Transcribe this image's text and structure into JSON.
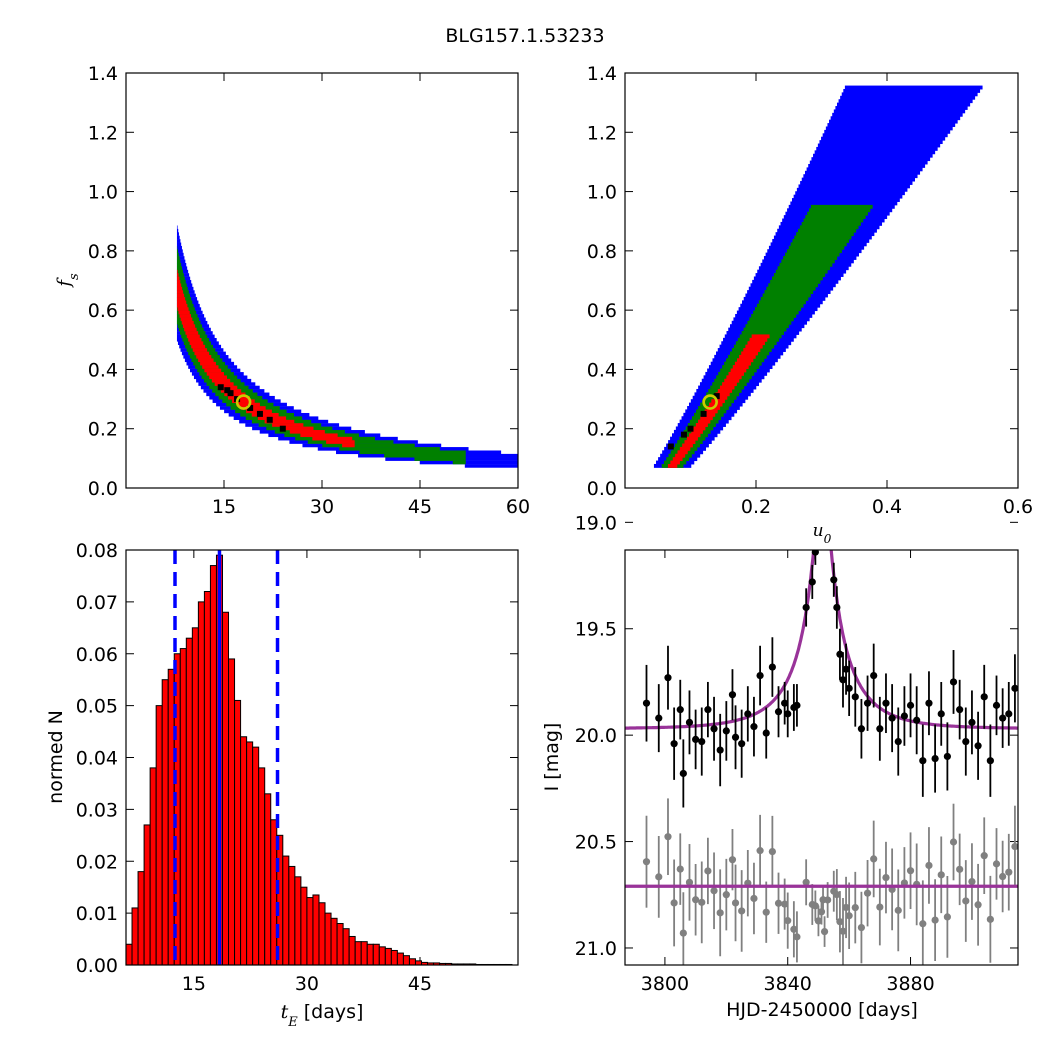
{
  "figure_title": "BLG157.1.53233",
  "colors": {
    "outer": "#0000ff",
    "middle": "#008000",
    "inner": "#ff0000",
    "core": "#000000",
    "marker": "#cccc00",
    "histogram_fill": "#ff0000",
    "median_line": "#0000ff",
    "model_line": "#993399",
    "data_primary": "#000000",
    "data_secondary": "#808080"
  },
  "chart_data": [
    {
      "id": "tE-fs",
      "type": "heatmap",
      "xlabel": "",
      "ylabel": "f_s",
      "xlim": [
        0,
        60
      ],
      "ylim": [
        0,
        1.4
      ],
      "xticks": [
        "15",
        "30",
        "45",
        "60"
      ],
      "yticks": [
        "0.0",
        "0.2",
        "0.4",
        "0.6",
        "0.8",
        "1.0",
        "1.2",
        "1.4"
      ],
      "levels": [
        "outer",
        "middle",
        "inner",
        "core"
      ],
      "best_fit": {
        "x": 18,
        "y": 0.29
      }
    },
    {
      "id": "u0-fs",
      "type": "heatmap",
      "xlabel": "u_0",
      "ylabel": "",
      "xlim": [
        0,
        0.6
      ],
      "ylim": [
        0,
        1.4
      ],
      "xticks": [
        "0.2",
        "0.4",
        "0.6"
      ],
      "yticks": [
        "0.0",
        "0.2",
        "0.4",
        "0.6",
        "0.8",
        "1.0",
        "1.2",
        "1.4"
      ],
      "levels": [
        "outer",
        "middle",
        "inner",
        "core"
      ],
      "best_fit": {
        "x": 0.13,
        "y": 0.29
      }
    },
    {
      "id": "tE-hist",
      "type": "bar",
      "xlabel": "[days]",
      "xlabel_symbol": "t_E",
      "ylabel": "normed N",
      "xlim": [
        6,
        58
      ],
      "ylim": [
        0,
        0.08
      ],
      "xticks": [
        "15",
        "30",
        "45"
      ],
      "yticks": [
        "0.00",
        "0.01",
        "0.02",
        "0.03",
        "0.04",
        "0.05",
        "0.06",
        "0.07",
        "0.08"
      ],
      "bin_width": 0.8,
      "bin_start": 6.0,
      "values": [
        0.004,
        0.011,
        0.018,
        0.027,
        0.038,
        0.05,
        0.055,
        0.057,
        0.06,
        0.061,
        0.063,
        0.065,
        0.07,
        0.072,
        0.077,
        0.079,
        0.068,
        0.059,
        0.051,
        0.044,
        0.043,
        0.042,
        0.038,
        0.033,
        0.028,
        0.025,
        0.021,
        0.019,
        0.017,
        0.015,
        0.013,
        0.0135,
        0.012,
        0.01,
        0.009,
        0.008,
        0.007,
        0.0055,
        0.0045,
        0.0045,
        0.004,
        0.004,
        0.0035,
        0.0032,
        0.0028,
        0.0023,
        0.0018,
        0.0012,
        0.0008,
        0.0005,
        0.0004,
        0.0004,
        0.0003,
        0.0003,
        0.0002,
        0.0002,
        0.0002,
        0.0002,
        0.0001,
        0.0001,
        0.0001,
        0.0001,
        0.0001,
        0.0001,
        0.0
      ],
      "median": 18.4,
      "interval": [
        12.5,
        26.1
      ]
    },
    {
      "id": "lightcurve",
      "type": "scatter",
      "xlabel": "HJD-2450000 [days]",
      "ylabel": "I [mag]",
      "xlim": [
        3787,
        3915
      ],
      "ylim": [
        21.08,
        19.13
      ],
      "y_inverted": true,
      "xticks": [
        "3800",
        "3840",
        "3880"
      ],
      "yticks": [
        "19.0",
        "19.5",
        "20.0",
        "20.5",
        "21.0"
      ],
      "model": {
        "t0": 3851.3,
        "tE": 18.4,
        "u0": 0.13,
        "fs": 0.29,
        "baseline": 19.97
      },
      "residual_baseline": 20.71,
      "observations": [
        {
          "t": 3794,
          "mag": 19.85,
          "err": 0.18
        },
        {
          "t": 3798,
          "mag": 19.92,
          "err": 0.16
        },
        {
          "t": 3801,
          "mag": 19.73,
          "err": 0.15
        },
        {
          "t": 3803,
          "mag": 20.04,
          "err": 0.17
        },
        {
          "t": 3805,
          "mag": 19.88,
          "err": 0.14
        },
        {
          "t": 3806,
          "mag": 20.18,
          "err": 0.16
        },
        {
          "t": 3808,
          "mag": 19.94,
          "err": 0.15
        },
        {
          "t": 3810,
          "mag": 20.02,
          "err": 0.14
        },
        {
          "t": 3812,
          "mag": 20.03,
          "err": 0.16
        },
        {
          "t": 3814,
          "mag": 19.88,
          "err": 0.13
        },
        {
          "t": 3816,
          "mag": 19.97,
          "err": 0.15
        },
        {
          "t": 3818,
          "mag": 20.07,
          "err": 0.17
        },
        {
          "t": 3820,
          "mag": 19.98,
          "err": 0.14
        },
        {
          "t": 3822,
          "mag": 19.81,
          "err": 0.12
        },
        {
          "t": 3823,
          "mag": 20.01,
          "err": 0.15
        },
        {
          "t": 3825,
          "mag": 20.04,
          "err": 0.16
        },
        {
          "t": 3827,
          "mag": 19.9,
          "err": 0.13
        },
        {
          "t": 3829,
          "mag": 19.96,
          "err": 0.14
        },
        {
          "t": 3831,
          "mag": 19.72,
          "err": 0.14
        },
        {
          "t": 3833,
          "mag": 19.99,
          "err": 0.12
        },
        {
          "t": 3835,
          "mag": 19.68,
          "err": 0.14
        },
        {
          "t": 3837,
          "mag": 19.89,
          "err": 0.12
        },
        {
          "t": 3839,
          "mag": 19.85,
          "err": 0.1
        },
        {
          "t": 3840,
          "mag": 19.9,
          "err": 0.11
        },
        {
          "t": 3842,
          "mag": 19.87,
          "err": 0.11
        },
        {
          "t": 3843,
          "mag": 19.86,
          "err": 0.1
        },
        {
          "t": 3846,
          "mag": 19.4,
          "err": 0.09
        },
        {
          "t": 3848,
          "mag": 19.28,
          "err": 0.08
        },
        {
          "t": 3849,
          "mag": 19.14,
          "err": 0.06
        },
        {
          "t": 3850,
          "mag": 19.06,
          "err": 0.06
        },
        {
          "t": 3851,
          "mag": 18.92,
          "err": 0.05
        },
        {
          "t": 3851.5,
          "mag": 18.86,
          "err": 0.05
        },
        {
          "t": 3852,
          "mag": 19.04,
          "err": 0.06
        },
        {
          "t": 3853,
          "mag": 19.02,
          "err": 0.07
        },
        {
          "t": 3855,
          "mag": 19.27,
          "err": 0.08
        },
        {
          "t": 3856,
          "mag": 19.4,
          "err": 0.1
        },
        {
          "t": 3857,
          "mag": 19.62,
          "err": 0.12
        },
        {
          "t": 3858,
          "mag": 19.74,
          "err": 0.13
        },
        {
          "t": 3859,
          "mag": 19.69,
          "err": 0.12
        },
        {
          "t": 3860,
          "mag": 19.78,
          "err": 0.13
        },
        {
          "t": 3862,
          "mag": 19.82,
          "err": 0.14
        },
        {
          "t": 3864,
          "mag": 19.97,
          "err": 0.14
        },
        {
          "t": 3866,
          "mag": 19.85,
          "err": 0.13
        },
        {
          "t": 3868,
          "mag": 19.72,
          "err": 0.15
        },
        {
          "t": 3870,
          "mag": 19.97,
          "err": 0.15
        },
        {
          "t": 3872,
          "mag": 19.85,
          "err": 0.14
        },
        {
          "t": 3874,
          "mag": 19.92,
          "err": 0.16
        },
        {
          "t": 3876,
          "mag": 20.03,
          "err": 0.16
        },
        {
          "t": 3878,
          "mag": 19.91,
          "err": 0.14
        },
        {
          "t": 3880,
          "mag": 19.86,
          "err": 0.15
        },
        {
          "t": 3882,
          "mag": 19.93,
          "err": 0.16
        },
        {
          "t": 3884,
          "mag": 20.12,
          "err": 0.17
        },
        {
          "t": 3886,
          "mag": 19.85,
          "err": 0.15
        },
        {
          "t": 3888,
          "mag": 20.11,
          "err": 0.16
        },
        {
          "t": 3890,
          "mag": 19.9,
          "err": 0.15
        },
        {
          "t": 3892,
          "mag": 20.1,
          "err": 0.16
        },
        {
          "t": 3894,
          "mag": 19.75,
          "err": 0.15
        },
        {
          "t": 3896,
          "mag": 19.88,
          "err": 0.14
        },
        {
          "t": 3898,
          "mag": 20.03,
          "err": 0.16
        },
        {
          "t": 3900,
          "mag": 19.94,
          "err": 0.15
        },
        {
          "t": 3902,
          "mag": 20.05,
          "err": 0.16
        },
        {
          "t": 3904,
          "mag": 19.82,
          "err": 0.15
        },
        {
          "t": 3906,
          "mag": 20.12,
          "err": 0.17
        },
        {
          "t": 3908,
          "mag": 19.86,
          "err": 0.14
        },
        {
          "t": 3910,
          "mag": 19.92,
          "err": 0.14
        },
        {
          "t": 3912,
          "mag": 19.9,
          "err": 0.15
        },
        {
          "t": 3914,
          "mag": 19.78,
          "err": 0.16
        }
      ]
    }
  ]
}
